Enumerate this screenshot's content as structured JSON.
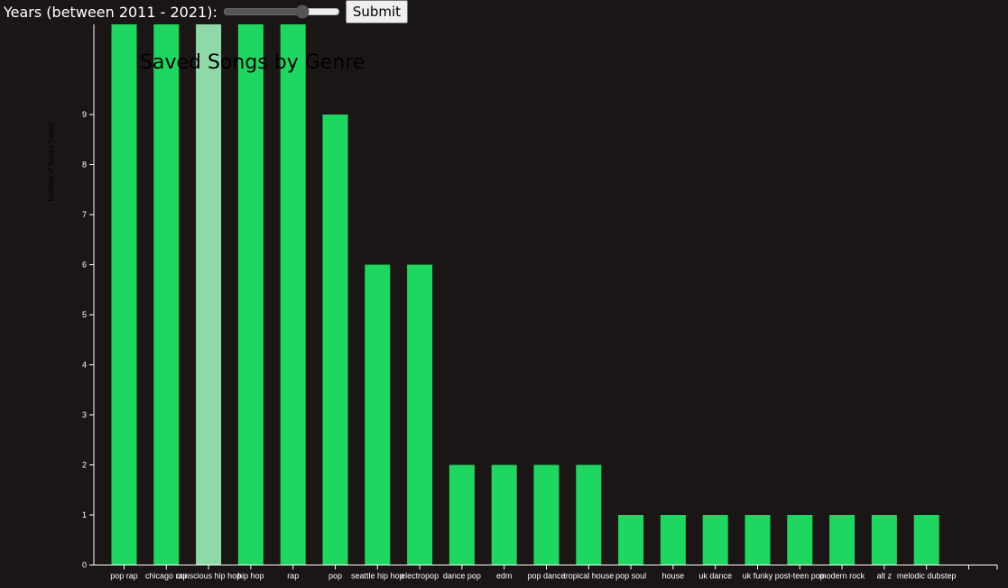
{
  "controls": {
    "year_label": "Years (between 2011 - 2021):",
    "slider_min": 2011,
    "slider_max": 2021,
    "slider_value": 2018,
    "submit_label": "Submit"
  },
  "colors": {
    "background": "#1a1615",
    "bar": "#1ed760",
    "bar_highlight": "#8fd9a8",
    "axis": "#ffffff",
    "title": "#000000"
  },
  "chart_data": {
    "type": "bar",
    "title": "Saved Songs by Genre",
    "xlabel": "",
    "ylabel": "Number of Songs Saved",
    "ylim": [
      0,
      11
    ],
    "yticks": [
      0,
      1,
      2,
      3,
      4,
      5,
      6,
      7,
      8,
      9
    ],
    "categories": [
      "pop rap",
      "chicago rap",
      "conscious hip hop",
      "hip hop",
      "rap",
      "pop",
      "seattle hip hop",
      "electropop",
      "dance pop",
      "edm",
      "pop dance",
      "tropical house",
      "pop soul",
      "house",
      "uk dance",
      "uk funky",
      "post-teen pop",
      "modern rock",
      "alt z",
      "melodic dubstep"
    ],
    "values": [
      11,
      11,
      11,
      11,
      11,
      9,
      6,
      6,
      2,
      2,
      2,
      2,
      1,
      1,
      1,
      1,
      1,
      1,
      1,
      1
    ],
    "highlighted": "conscious hip hop",
    "grid": false
  }
}
